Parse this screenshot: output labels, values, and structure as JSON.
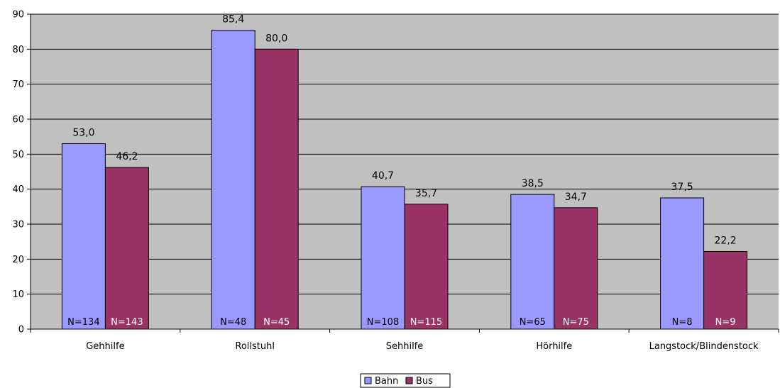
{
  "chart_data": {
    "type": "bar",
    "categories": [
      "Gehhilfe",
      "Rollstuhl",
      "Sehhilfe",
      "Hörhilfe",
      "Langstock/Blindenstock"
    ],
    "series": [
      {
        "name": "Bahn",
        "values": [
          53.0,
          85.4,
          40.7,
          38.5,
          37.5
        ],
        "value_labels": [
          "53,0",
          "85,4",
          "40,7",
          "38,5",
          "37,5"
        ],
        "n_labels": [
          "N=134",
          "N=48",
          "N=108",
          "N=65",
          "N=8"
        ],
        "color": "#9999ff"
      },
      {
        "name": "Bus",
        "values": [
          46.2,
          80.0,
          35.7,
          34.7,
          22.2
        ],
        "value_labels": [
          "46,2",
          "80,0",
          "35,7",
          "34,7",
          "22,2"
        ],
        "n_labels": [
          "N=143",
          "N=45",
          "N=115",
          "N=75",
          "N=9"
        ],
        "color": "#993366"
      }
    ],
    "ylim": [
      0,
      90
    ],
    "yticks": [
      "0",
      "10",
      "20",
      "30",
      "40",
      "50",
      "60",
      "70",
      "80",
      "90"
    ],
    "plot_background": "#c0c0c0",
    "grid": true,
    "legend_position": "bottom-center"
  }
}
